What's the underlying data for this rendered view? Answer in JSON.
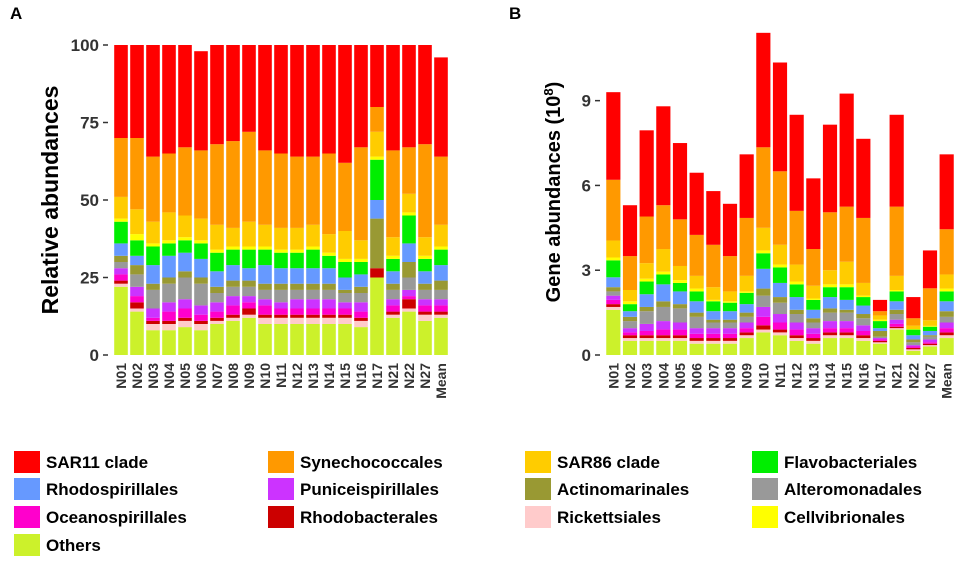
{
  "panel_labels": [
    "A",
    "B"
  ],
  "series_colors": {
    "Others": "#ccf12b",
    "Rickettsiales": "#ffcbcb",
    "Rhodobacterales": "#cc0000",
    "Oceanospirillales": "#ff00cc",
    "Puniceispirillales": "#cc33ff",
    "Alteromonadales": "#999999",
    "Actinomarinales": "#999933",
    "Rhodospirillales": "#6699ff",
    "Flavobacteriales": "#00ee00",
    "Cellvibrionales": "#ffff00",
    "SAR86 clade": "#ffcc00",
    "Synechococcales": "#ff9900",
    "SAR11 clade": "#ff0000"
  },
  "legend": [
    [
      "SAR11 clade",
      "Synechococcales",
      "SAR86 clade",
      "Flavobacteriales"
    ],
    [
      "Rhodospirillales",
      "Puniceispirillales",
      "Actinomarinales",
      "Alteromonadales"
    ],
    [
      "Oceanospirillales",
      "Rhodobacterales",
      "Rickettsiales",
      "Cellvibrionales"
    ],
    [
      "Others"
    ]
  ],
  "chart_data": [
    {
      "panel": "A",
      "type": "bar",
      "stacked": true,
      "title": "",
      "xlabel": "",
      "ylabel": "Relative abundances",
      "ylim": [
        0,
        100
      ],
      "yticks": [
        0,
        25,
        50,
        75,
        100
      ],
      "categories": [
        "N01",
        "N02",
        "N03",
        "N04",
        "N05",
        "N06",
        "N07",
        "N08",
        "N09",
        "N10",
        "N11",
        "N12",
        "N13",
        "N14",
        "N15",
        "N16",
        "N17",
        "N21",
        "N22",
        "N27",
        "Mean"
      ],
      "series": [
        {
          "name": "Others",
          "values": [
            22,
            14,
            8,
            8,
            9,
            8,
            10,
            11,
            12,
            10,
            10,
            10,
            10,
            10,
            10,
            9,
            25,
            12,
            14,
            11,
            12
          ]
        },
        {
          "name": "Rickettsiales",
          "values": [
            1,
            1,
            2,
            2,
            2,
            2,
            1,
            1,
            1,
            2,
            2,
            2,
            2,
            2,
            2,
            2,
            0,
            1,
            1,
            2,
            1
          ]
        },
        {
          "name": "Rhodobacterales",
          "values": [
            1,
            2,
            1,
            1,
            1,
            1,
            1,
            1,
            2,
            1,
            1,
            1,
            1,
            1,
            1,
            1,
            3,
            1,
            3,
            1,
            1
          ]
        },
        {
          "name": "Oceanospirillales",
          "values": [
            2,
            2,
            1,
            3,
            3,
            2,
            2,
            3,
            2,
            3,
            2,
            2,
            2,
            2,
            2,
            2,
            0,
            2,
            1,
            2,
            2
          ]
        },
        {
          "name": "Puniceispirillales",
          "values": [
            2,
            3,
            3,
            3,
            3,
            3,
            3,
            3,
            2,
            2,
            2,
            3,
            3,
            3,
            2,
            3,
            0,
            2,
            2,
            2,
            2
          ]
        },
        {
          "name": "Alteromonadales",
          "values": [
            2,
            4,
            6,
            6,
            7,
            7,
            3,
            3,
            3,
            3,
            4,
            3,
            3,
            3,
            3,
            3,
            0,
            3,
            4,
            3,
            3
          ]
        },
        {
          "name": "Actinomarinales",
          "values": [
            2,
            3,
            2,
            2,
            2,
            2,
            2,
            2,
            2,
            2,
            2,
            2,
            2,
            2,
            1,
            2,
            16,
            2,
            5,
            2,
            3
          ]
        },
        {
          "name": "Rhodospirillales",
          "values": [
            4,
            3,
            6,
            7,
            6,
            6,
            5,
            5,
            4,
            6,
            5,
            5,
            5,
            5,
            4,
            4,
            6,
            4,
            6,
            4,
            5
          ]
        },
        {
          "name": "Flavobacteriales",
          "values": [
            7,
            5,
            6,
            4,
            4,
            5,
            6,
            5,
            6,
            5,
            5,
            5,
            6,
            4,
            5,
            4,
            13,
            4,
            9,
            4,
            5
          ]
        },
        {
          "name": "Cellvibrionales",
          "values": [
            1,
            2,
            1,
            1,
            1,
            1,
            1,
            1,
            1,
            1,
            1,
            1,
            1,
            1,
            1,
            1,
            1,
            1,
            1,
            1,
            1
          ]
        },
        {
          "name": "SAR86 clade",
          "values": [
            7,
            8,
            7,
            9,
            7,
            7,
            8,
            6,
            8,
            7,
            7,
            7,
            7,
            6,
            9,
            6,
            8,
            6,
            6,
            6,
            7
          ]
        },
        {
          "name": "Synechococcales",
          "values": [
            19,
            23,
            21,
            19,
            22,
            22,
            26,
            28,
            29,
            24,
            24,
            23,
            22,
            26,
            22,
            30,
            8,
            28,
            15,
            30,
            22
          ]
        },
        {
          "name": "SAR11 clade",
          "values": [
            30,
            30,
            36,
            35,
            33,
            32,
            32,
            31,
            28,
            34,
            35,
            36,
            36,
            35,
            38,
            33,
            20,
            34,
            33,
            32,
            32
          ]
        }
      ]
    },
    {
      "panel": "B",
      "type": "bar",
      "stacked": true,
      "title": "",
      "xlabel": "",
      "ylabel": "Gene abundances (10",
      "ylabel_superscript": "8",
      "ylabel_close": ")",
      "ylim": [
        0,
        11.5
      ],
      "yticks": [
        0,
        3,
        6,
        9
      ],
      "categories": [
        "N01",
        "N02",
        "N03",
        "N04",
        "N05",
        "N06",
        "N07",
        "N08",
        "N09",
        "N10",
        "N11",
        "N12",
        "N13",
        "N14",
        "N15",
        "N16",
        "N17",
        "N21",
        "N22",
        "N27",
        "Mean"
      ],
      "series": [
        {
          "name": "Others",
          "values": [
            1.6,
            0.5,
            0.5,
            0.5,
            0.5,
            0.4,
            0.4,
            0.4,
            0.6,
            0.8,
            0.7,
            0.5,
            0.4,
            0.6,
            0.6,
            0.5,
            0.4,
            0.9,
            0.15,
            0.3,
            0.6
          ]
        },
        {
          "name": "Rickettsiales",
          "values": [
            0.1,
            0.1,
            0.1,
            0.1,
            0.1,
            0.1,
            0.1,
            0.1,
            0.1,
            0.1,
            0.1,
            0.1,
            0.1,
            0.1,
            0.1,
            0.1,
            0.05,
            0.05,
            0.05,
            0.05,
            0.1
          ]
        },
        {
          "name": "Rhodobacterales",
          "values": [
            0.1,
            0.1,
            0.1,
            0.1,
            0.1,
            0.1,
            0.1,
            0.1,
            0.1,
            0.15,
            0.1,
            0.1,
            0.1,
            0.1,
            0.1,
            0.1,
            0.05,
            0.05,
            0.05,
            0.05,
            0.1
          ]
        },
        {
          "name": "Oceanospirillales",
          "values": [
            0.15,
            0.1,
            0.15,
            0.2,
            0.2,
            0.15,
            0.15,
            0.15,
            0.15,
            0.3,
            0.25,
            0.2,
            0.15,
            0.15,
            0.15,
            0.15,
            0.05,
            0.1,
            0.05,
            0.05,
            0.15
          ]
        },
        {
          "name": "Puniceispirillales",
          "values": [
            0.15,
            0.15,
            0.25,
            0.3,
            0.25,
            0.2,
            0.2,
            0.2,
            0.2,
            0.35,
            0.3,
            0.25,
            0.2,
            0.25,
            0.25,
            0.2,
            0.05,
            0.15,
            0.05,
            0.1,
            0.2
          ]
        },
        {
          "name": "Alteromonadales",
          "values": [
            0.15,
            0.25,
            0.45,
            0.5,
            0.5,
            0.4,
            0.2,
            0.2,
            0.2,
            0.4,
            0.4,
            0.3,
            0.2,
            0.3,
            0.3,
            0.25,
            0.05,
            0.2,
            0.1,
            0.1,
            0.2
          ]
        },
        {
          "name": "Actinomarinales",
          "values": [
            0.15,
            0.15,
            0.15,
            0.2,
            0.15,
            0.15,
            0.1,
            0.1,
            0.15,
            0.25,
            0.2,
            0.15,
            0.15,
            0.15,
            0.1,
            0.15,
            0.2,
            0.15,
            0.1,
            0.05,
            0.2
          ]
        },
        {
          "name": "Rhodospirillales",
          "values": [
            0.35,
            0.2,
            0.45,
            0.6,
            0.45,
            0.4,
            0.3,
            0.3,
            0.3,
            0.7,
            0.5,
            0.45,
            0.3,
            0.4,
            0.35,
            0.3,
            0.1,
            0.3,
            0.15,
            0.15,
            0.35
          ]
        },
        {
          "name": "Flavobacteriales",
          "values": [
            0.6,
            0.25,
            0.45,
            0.35,
            0.3,
            0.35,
            0.35,
            0.3,
            0.4,
            0.55,
            0.55,
            0.45,
            0.35,
            0.35,
            0.45,
            0.3,
            0.25,
            0.35,
            0.2,
            0.15,
            0.35
          ]
        },
        {
          "name": "Cellvibrionales",
          "values": [
            0.1,
            0.1,
            0.1,
            0.1,
            0.1,
            0.1,
            0.05,
            0.05,
            0.05,
            0.1,
            0.1,
            0.1,
            0.05,
            0.1,
            0.1,
            0.05,
            0.05,
            0.05,
            0.02,
            0.03,
            0.1
          ]
        },
        {
          "name": "SAR86 clade",
          "values": [
            0.6,
            0.4,
            0.55,
            0.8,
            0.5,
            0.45,
            0.45,
            0.35,
            0.55,
            0.8,
            0.7,
            0.6,
            0.45,
            0.5,
            0.8,
            0.45,
            0.15,
            0.5,
            0.12,
            0.2,
            0.5
          ]
        },
        {
          "name": "Synechococcales",
          "values": [
            2.15,
            1.2,
            1.65,
            1.55,
            1.65,
            1.45,
            1.5,
            1.25,
            2.05,
            2.85,
            2.6,
            1.9,
            1.3,
            2.05,
            1.95,
            2.3,
            0.15,
            2.45,
            0.26,
            1.13,
            1.6
          ]
        },
        {
          "name": "SAR11 clade",
          "values": [
            3.1,
            1.8,
            3.05,
            3.5,
            2.7,
            2.2,
            1.9,
            1.85,
            2.25,
            4.05,
            3.85,
            3.4,
            2.5,
            3.1,
            4.0,
            2.8,
            0.4,
            3.25,
            0.75,
            1.34,
            2.65
          ]
        }
      ]
    }
  ]
}
